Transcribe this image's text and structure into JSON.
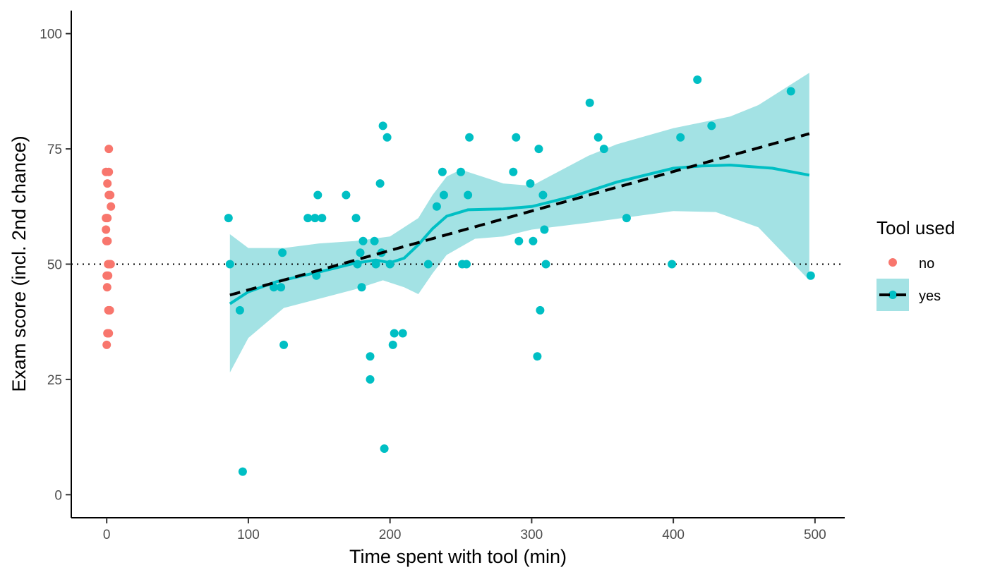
{
  "chart_data": {
    "type": "scatter",
    "xlabel": "Time spent with tool (min)",
    "ylabel": "Exam score (incl. 2nd chance)",
    "xlim": [
      -25,
      521
    ],
    "ylim": [
      -5,
      105
    ],
    "x_ticks": [
      0,
      100,
      200,
      300,
      400,
      500
    ],
    "y_ticks": [
      0,
      25,
      50,
      75,
      100
    ],
    "x_tick_labels": [
      "0",
      "100",
      "200",
      "300",
      "400",
      "500"
    ],
    "y_tick_labels": [
      "0",
      "25",
      "50",
      "75",
      "100"
    ],
    "grid": false,
    "reference_line": {
      "y": 50,
      "style": "dotted",
      "color": "#000000"
    },
    "legend": {
      "title": "Tool used",
      "position": "right",
      "entries": [
        {
          "label": "no",
          "color": "#F8766D"
        },
        {
          "label": "yes",
          "color": "#00BFC4"
        }
      ]
    },
    "series": [
      {
        "name": "no",
        "color": "#F8766D",
        "points": [
          [
            1.5,
            75
          ],
          [
            -0.5,
            70
          ],
          [
            1.5,
            70
          ],
          [
            0.5,
            67.5
          ],
          [
            1.5,
            65
          ],
          [
            2.5,
            65
          ],
          [
            3,
            62.5
          ],
          [
            -0.5,
            60
          ],
          [
            0.5,
            60
          ],
          [
            -0.5,
            57.5
          ],
          [
            -0.2,
            55
          ],
          [
            0.6,
            55
          ],
          [
            1,
            50
          ],
          [
            2,
            50
          ],
          [
            2.8,
            50
          ],
          [
            0,
            47.5
          ],
          [
            1,
            47.5
          ],
          [
            0.3,
            45
          ],
          [
            1.2,
            40
          ],
          [
            2.2,
            40
          ],
          [
            0.5,
            35
          ],
          [
            1.5,
            35
          ],
          [
            0,
            32.5
          ]
        ]
      },
      {
        "name": "yes",
        "color": "#00BFC4",
        "points": [
          [
            86,
            60
          ],
          [
            87,
            50
          ],
          [
            94,
            40
          ],
          [
            96,
            5
          ],
          [
            118,
            45
          ],
          [
            123,
            45
          ],
          [
            124,
            52.5
          ],
          [
            125,
            32.5
          ],
          [
            142,
            60
          ],
          [
            147,
            60
          ],
          [
            148,
            47.5
          ],
          [
            149,
            65
          ],
          [
            152,
            60
          ],
          [
            169,
            65
          ],
          [
            176,
            60
          ],
          [
            177,
            50
          ],
          [
            179,
            52.5
          ],
          [
            180,
            45
          ],
          [
            181,
            55
          ],
          [
            186,
            30
          ],
          [
            186,
            25
          ],
          [
            189,
            55
          ],
          [
            190,
            50
          ],
          [
            193,
            67.5
          ],
          [
            194,
            52.5
          ],
          [
            195,
            80
          ],
          [
            196,
            10
          ],
          [
            198,
            77.5
          ],
          [
            200,
            50
          ],
          [
            202,
            32.5
          ],
          [
            203,
            35
          ],
          [
            209,
            35
          ],
          [
            227,
            50
          ],
          [
            233,
            62.5
          ],
          [
            237,
            70
          ],
          [
            238,
            65
          ],
          [
            250,
            70
          ],
          [
            251,
            50
          ],
          [
            254,
            50
          ],
          [
            255,
            65
          ],
          [
            256,
            77.5
          ],
          [
            287,
            70
          ],
          [
            289,
            77.5
          ],
          [
            291,
            55
          ],
          [
            299,
            67.5
          ],
          [
            301,
            55
          ],
          [
            304,
            30
          ],
          [
            305,
            75
          ],
          [
            306,
            40
          ],
          [
            308,
            65
          ],
          [
            309,
            57.5
          ],
          [
            310,
            50
          ],
          [
            341,
            85
          ],
          [
            347,
            77.5
          ],
          [
            351,
            75
          ],
          [
            367,
            60
          ],
          [
            399,
            50
          ],
          [
            405,
            77.5
          ],
          [
            417,
            90
          ],
          [
            427,
            80
          ],
          [
            483,
            87.5
          ],
          [
            497,
            47.5
          ]
        ]
      }
    ],
    "smooth_fit": {
      "series": "yes",
      "method": "loess",
      "color": "#00BFC4",
      "ribbon_color": "#A3E2E4",
      "line": [
        [
          87,
          41.4
        ],
        [
          100,
          44
        ],
        [
          120,
          46.2
        ],
        [
          150,
          48.3
        ],
        [
          175,
          50.2
        ],
        [
          190,
          50.9
        ],
        [
          200,
          50.3
        ],
        [
          210,
          51.3
        ],
        [
          220,
          54.2
        ],
        [
          230,
          57.7
        ],
        [
          240,
          60.4
        ],
        [
          255,
          61.8
        ],
        [
          280,
          62
        ],
        [
          300,
          62.5
        ],
        [
          330,
          64.8
        ],
        [
          360,
          67.8
        ],
        [
          400,
          70.8
        ],
        [
          420,
          71.3
        ],
        [
          440,
          71.5
        ],
        [
          470,
          70.8
        ],
        [
          496,
          69.3
        ]
      ],
      "upper": [
        [
          87,
          56.5
        ],
        [
          100,
          53.5
        ],
        [
          125,
          53.5
        ],
        [
          150,
          54.5
        ],
        [
          175,
          55
        ],
        [
          200,
          56
        ],
        [
          220,
          60
        ],
        [
          230,
          65
        ],
        [
          240,
          69
        ],
        [
          250,
          70.5
        ],
        [
          280,
          67.5
        ],
        [
          300,
          67
        ],
        [
          340,
          73.5
        ],
        [
          360,
          76
        ],
        [
          400,
          79.5
        ],
        [
          440,
          82
        ],
        [
          460,
          84.5
        ],
        [
          496,
          91.5
        ]
      ],
      "lower": [
        [
          87,
          26.5
        ],
        [
          100,
          34
        ],
        [
          125,
          40.5
        ],
        [
          150,
          42.5
        ],
        [
          175,
          44.5
        ],
        [
          195,
          46.5
        ],
        [
          210,
          45
        ],
        [
          220,
          43.5
        ],
        [
          230,
          48
        ],
        [
          240,
          52
        ],
        [
          260,
          55.5
        ],
        [
          280,
          56
        ],
        [
          300,
          57.5
        ],
        [
          340,
          59
        ],
        [
          400,
          61.5
        ],
        [
          430,
          61.3
        ],
        [
          460,
          58
        ],
        [
          496,
          46.5
        ]
      ]
    },
    "linear_fit": {
      "series": "yes",
      "method": "lm",
      "style": "dashed",
      "color": "#000000",
      "line": [
        [
          87,
          43.3
        ],
        [
          496,
          78.3
        ]
      ]
    }
  }
}
